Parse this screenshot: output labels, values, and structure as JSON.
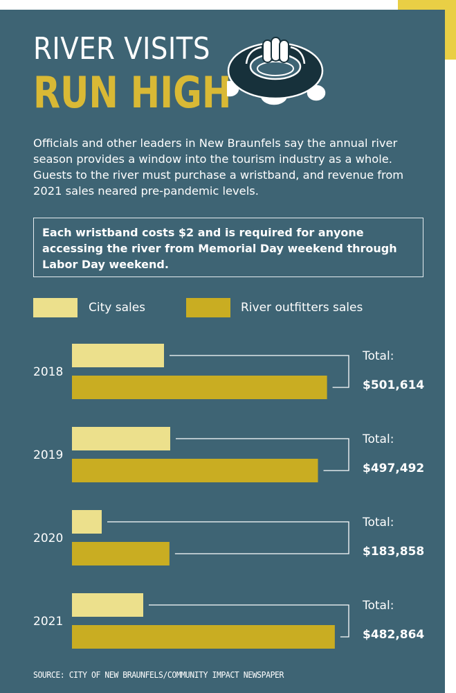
{
  "title_line1": "RIVER VISITS",
  "title_line2": "RUN HIGH",
  "intro": "Officials and other leaders in New Braunfels say the annual river season provides a window into the tourism industry as a whole. Guests to the river must purchase a wristband, and revenue from 2021 sales neared pre-pandemic levels.",
  "callout": "Each wristband costs $2 and is required for anyone accessing the river from Memorial Day weekend through Labor Day weekend.",
  "source": "SOURCE: CITY OF NEW BRAUNFELS/COMMUNITY IMPACT NEWSPAPER",
  "icon": "inner-tube-icon",
  "colors": {
    "background": "#3e6474",
    "accent_yellow": "#e9cf45",
    "title_gold": "#d9b935",
    "city_sales": "#ece08c",
    "outfitter_sales": "#c9ad22"
  },
  "chart_data": {
    "type": "bar",
    "orientation": "horizontal",
    "categories": [
      "2018",
      "2019",
      "2020",
      "2021"
    ],
    "series": [
      {
        "name": "City sales",
        "color": "#ece08c",
        "values": [
          133000,
          142000,
          43000,
          103000
        ]
      },
      {
        "name": "River outfitters sales",
        "color": "#c9ad22",
        "values": [
          368614,
          355492,
          140858,
          379864
        ]
      }
    ],
    "total_label": "Total:",
    "totals": [
      "$501,614",
      "$497,492",
      "$183,858",
      "$482,864"
    ],
    "xlim": [
      0,
      380000
    ],
    "legend": "top-left",
    "grid": false
  }
}
